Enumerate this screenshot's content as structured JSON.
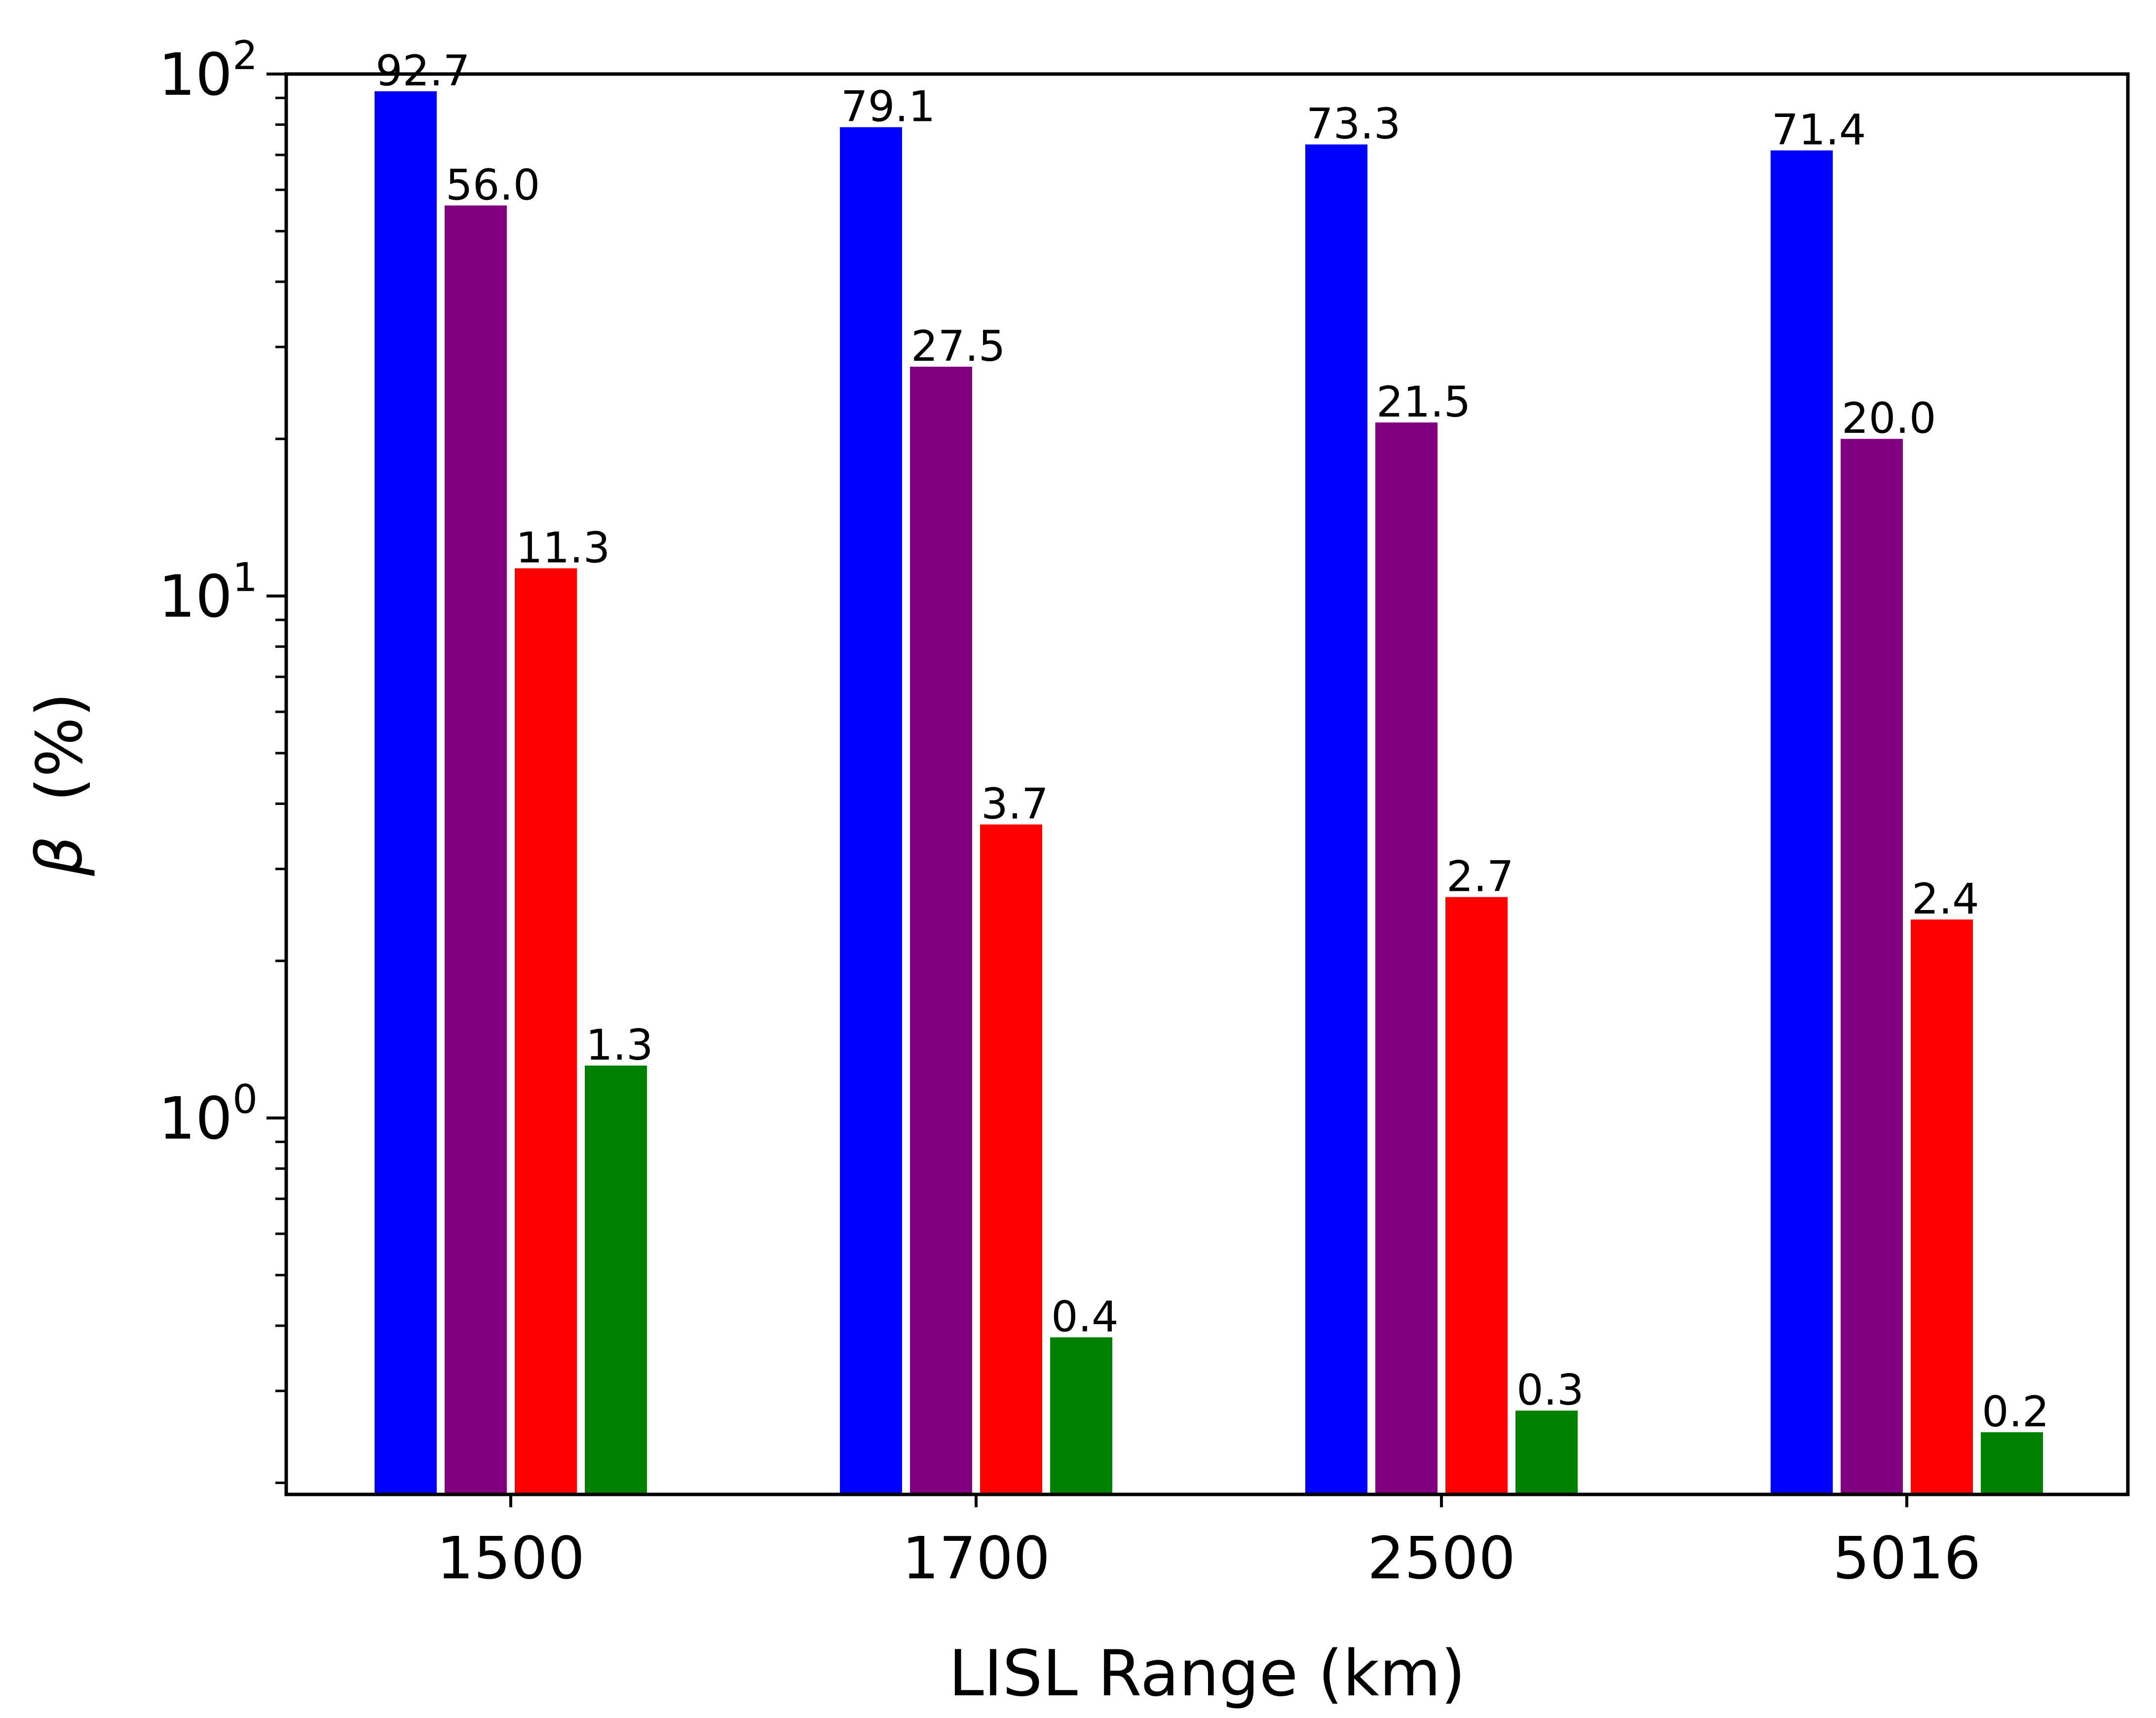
{
  "chart_data": {
    "type": "bar",
    "categories": [
      "1500",
      "1700",
      "2500",
      "5016"
    ],
    "series": [
      {
        "color": "#0000ff",
        "values": [
          92.7,
          79.1,
          73.3,
          71.4
        ],
        "labels": [
          "92.7",
          "79.1",
          "73.3",
          "71.4"
        ]
      },
      {
        "color": "#800080",
        "values": [
          56.0,
          27.5,
          21.5,
          20.0
        ],
        "labels": [
          "56.0",
          "27.5",
          "21.5",
          "20.0"
        ]
      },
      {
        "color": "#ff0000",
        "values": [
          11.3,
          3.7,
          2.7,
          2.4
        ],
        "labels": [
          "11.3",
          "3.7",
          "2.7",
          "2.4"
        ]
      },
      {
        "color": "#008000",
        "values": [
          1.3,
          0.4,
          0.3,
          0.2
        ],
        "labels": [
          "1.3",
          "0.4",
          "0.3",
          "0.2"
        ]
      }
    ],
    "bar_heights": [
      [
        92.7,
        79.1,
        73.3,
        71.4
      ],
      [
        56.0,
        27.5,
        21.5,
        20.0
      ],
      [
        11.3,
        3.65,
        2.65,
        2.4
      ],
      [
        1.26,
        0.38,
        0.275,
        0.25
      ]
    ],
    "xlabel": "LISL Range (km)",
    "ylabel_symbol": "β",
    "ylabel_unit": "(%)",
    "yscale": "log",
    "ylim": [
      0.19,
      100
    ],
    "yticks": [
      {
        "base": "10",
        "exponent": "0",
        "value": 1
      },
      {
        "base": "10",
        "exponent": "1",
        "value": 10
      },
      {
        "base": "10",
        "exponent": "2",
        "value": 100
      }
    ],
    "grid": false,
    "legend": "none"
  }
}
